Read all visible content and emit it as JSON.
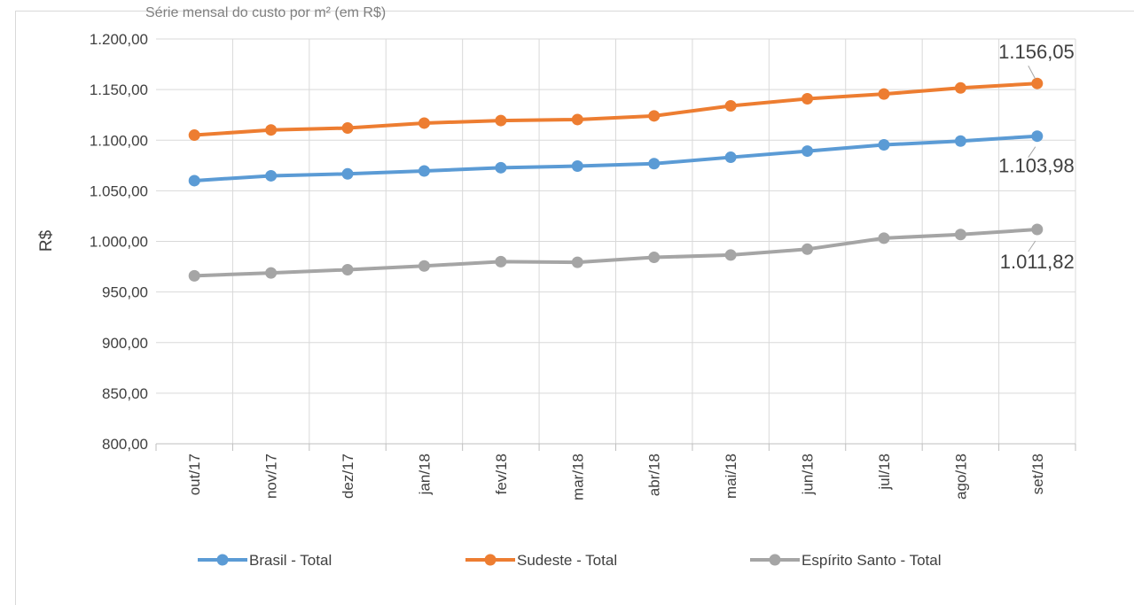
{
  "chart_data": {
    "type": "line",
    "title": "Série mensal do custo por m² (em R$)",
    "xlabel": "",
    "ylabel": "R$",
    "ylim": [
      800,
      1200
    ],
    "ytick_step": 50,
    "ytick_labels": [
      "800,00",
      "850,00",
      "900,00",
      "950,00",
      "1.000,00",
      "1.050,00",
      "1.100,00",
      "1.150,00",
      "1.200,00"
    ],
    "grid": true,
    "legend_position": "bottom",
    "categories": [
      "out/17",
      "nov/17",
      "dez/17",
      "jan/18",
      "fev/18",
      "mar/18",
      "abr/18",
      "mai/18",
      "jun/18",
      "jul/18",
      "ago/18",
      "set/18"
    ],
    "series": [
      {
        "name": "Brasil - Total",
        "color": "#5b9bd5",
        "values": [
          1060.0,
          1064.8,
          1066.7,
          1069.6,
          1072.8,
          1074.4,
          1076.8,
          1083.1,
          1089.2,
          1095.4,
          1099.1,
          1103.98
        ]
      },
      {
        "name": "Sudeste - Total",
        "color": "#ed7d31",
        "values": [
          1105.0,
          1110.1,
          1112.0,
          1116.9,
          1119.4,
          1120.4,
          1124.0,
          1133.9,
          1140.9,
          1145.6,
          1151.6,
          1156.05
        ]
      },
      {
        "name": "Espírito Santo - Total",
        "color": "#a5a5a5",
        "values": [
          966.0,
          968.8,
          972.0,
          975.7,
          980.0,
          979.3,
          984.2,
          986.5,
          992.3,
          1003.2,
          1006.8,
          1011.82
        ]
      }
    ],
    "data_labels": [
      {
        "series": "Sudeste - Total",
        "category": "set/18",
        "text": "1.156,05"
      },
      {
        "series": "Brasil - Total",
        "category": "set/18",
        "text": "1.103,98"
      },
      {
        "series": "Espírito Santo - Total",
        "category": "set/18",
        "text": "1.011,82"
      }
    ]
  }
}
